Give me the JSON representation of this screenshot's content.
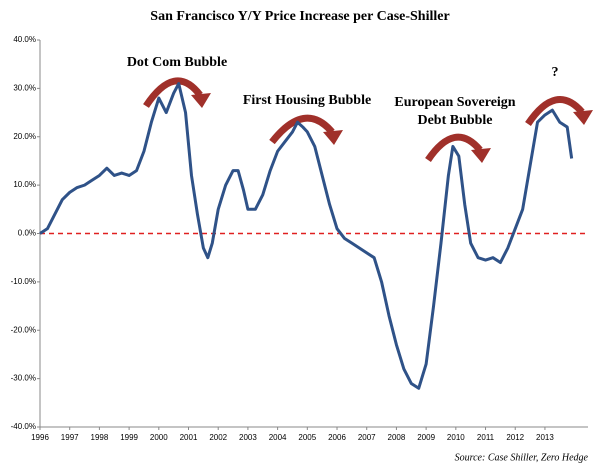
{
  "chart_data": {
    "type": "line",
    "title": "San Francisco Y/Y Price Increase per Case-Shiller",
    "source": "Source: Case Shiller, Zero Hedge",
    "x": [
      1996.0,
      1996.25,
      1996.5,
      1996.75,
      1997.0,
      1997.25,
      1997.5,
      1997.75,
      1998.0,
      1998.25,
      1998.5,
      1998.75,
      1999.0,
      1999.25,
      1999.5,
      1999.75,
      2000.0,
      2000.25,
      2000.5,
      2000.67,
      2000.9,
      2001.1,
      2001.3,
      2001.5,
      2001.65,
      2001.8,
      2002.0,
      2002.25,
      2002.5,
      2002.67,
      2002.85,
      2003.0,
      2003.25,
      2003.5,
      2003.75,
      2004.0,
      2004.25,
      2004.5,
      2004.67,
      2004.85,
      2005.0,
      2005.25,
      2005.5,
      2005.75,
      2006.0,
      2006.25,
      2006.5,
      2006.75,
      2007.0,
      2007.25,
      2007.5,
      2007.75,
      2008.0,
      2008.25,
      2008.5,
      2008.75,
      2009.0,
      2009.25,
      2009.5,
      2009.75,
      2009.9,
      2010.1,
      2010.3,
      2010.5,
      2010.75,
      2011.0,
      2011.25,
      2011.5,
      2011.75,
      2012.0,
      2012.25,
      2012.5,
      2012.75,
      2013.0,
      2013.25,
      2013.5,
      2013.75,
      2013.9
    ],
    "values": [
      0,
      1,
      4,
      7,
      8.5,
      9.5,
      10,
      11,
      12,
      13.5,
      12,
      12.5,
      12,
      13,
      17,
      23,
      28,
      25,
      29,
      31,
      25,
      12,
      4,
      -3,
      -5,
      -2,
      5,
      10,
      13,
      13,
      9,
      5,
      5,
      8,
      13,
      17,
      19,
      21,
      23,
      22,
      21,
      18,
      12,
      6,
      1,
      -1,
      -2,
      -3,
      -4,
      -5,
      -10,
      -17,
      -23,
      -28,
      -31,
      -32,
      -27,
      -15,
      -2,
      12,
      18,
      16,
      6,
      -2,
      -5,
      -5.5,
      -5,
      -6,
      -3,
      1,
      5,
      14,
      23,
      24.5,
      25.5,
      23,
      22,
      15.5
    ],
    "color": "#2f5288",
    "xlim": [
      1996,
      2014.45
    ],
    "xticks": [
      1996,
      1997,
      1998,
      1999,
      2000,
      2001,
      2002,
      2003,
      2004,
      2005,
      2006,
      2007,
      2008,
      2009,
      2010,
      2011,
      2012,
      2013
    ],
    "ylim": [
      -40,
      40
    ],
    "yticks": [
      {
        "value": -40,
        "label": "-40.0%"
      },
      {
        "value": -30,
        "label": "-30.0%"
      },
      {
        "value": -20,
        "label": "-20.0%"
      },
      {
        "value": -10,
        "label": "-10.0%"
      },
      {
        "value": 0,
        "label": "0.0%"
      },
      {
        "value": 10,
        "label": "10.0%"
      },
      {
        "value": 20,
        "label": "20.0%"
      },
      {
        "value": 30,
        "label": "30.0%"
      },
      {
        "value": 40,
        "label": "40.0%"
      }
    ],
    "reference_line": {
      "value": 0,
      "color": "#e02020"
    },
    "annotations": [
      {
        "lines": [
          "Dot Com Bubble"
        ]
      },
      {
        "lines": [
          "First Housing Bubble"
        ]
      },
      {
        "lines": [
          "European Sovereign",
          "Debt Bubble"
        ]
      },
      {
        "lines": [
          "?"
        ]
      }
    ]
  }
}
